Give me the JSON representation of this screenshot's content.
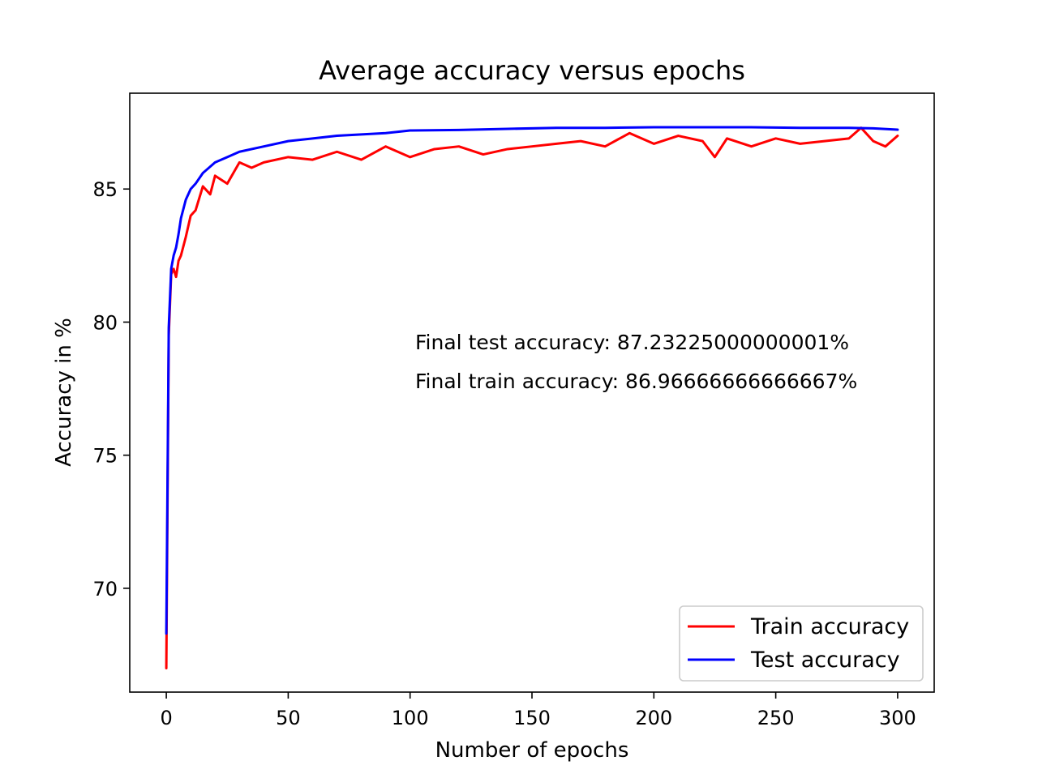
{
  "chart_data": {
    "type": "line",
    "title": "Average accuracy versus epochs",
    "xlabel": "Number of epochs",
    "ylabel": "Accuracy in %",
    "xlim": [
      -15,
      315
    ],
    "ylim": [
      66.1,
      88.6
    ],
    "xticks": [
      0,
      50,
      100,
      150,
      200,
      250,
      300
    ],
    "yticks": [
      70,
      75,
      80,
      85
    ],
    "grid": false,
    "legend_position": "lower-right",
    "series": [
      {
        "name": "Train accuracy",
        "color": "#ff0000",
        "x": [
          0,
          1,
          2,
          3,
          4,
          5,
          6,
          8,
          10,
          12,
          15,
          18,
          20,
          25,
          30,
          35,
          40,
          50,
          60,
          70,
          80,
          90,
          100,
          110,
          120,
          130,
          140,
          150,
          160,
          170,
          180,
          190,
          200,
          210,
          220,
          225,
          230,
          240,
          250,
          260,
          270,
          280,
          285,
          290,
          295,
          300
        ],
        "values": [
          67.0,
          79.5,
          81.8,
          82.0,
          81.7,
          82.3,
          82.5,
          83.2,
          84.0,
          84.2,
          85.1,
          84.8,
          85.5,
          85.2,
          86.0,
          85.8,
          86.0,
          86.2,
          86.1,
          86.4,
          86.1,
          86.6,
          86.2,
          86.5,
          86.6,
          86.3,
          86.5,
          86.6,
          86.7,
          86.8,
          86.6,
          87.1,
          86.7,
          87.0,
          86.8,
          86.2,
          86.9,
          86.6,
          86.9,
          86.7,
          86.8,
          86.9,
          87.3,
          86.8,
          86.6,
          87.0
        ]
      },
      {
        "name": "Test accuracy",
        "color": "#0000ff",
        "x": [
          0,
          1,
          2,
          3,
          4,
          5,
          6,
          8,
          10,
          12,
          15,
          20,
          25,
          30,
          40,
          50,
          60,
          70,
          80,
          90,
          100,
          120,
          140,
          160,
          180,
          200,
          220,
          240,
          260,
          280,
          290,
          300
        ],
        "values": [
          68.3,
          79.8,
          82.0,
          82.5,
          82.8,
          83.3,
          83.9,
          84.6,
          85.0,
          85.2,
          85.6,
          86.0,
          86.2,
          86.4,
          86.6,
          86.8,
          86.9,
          87.0,
          87.05,
          87.1,
          87.2,
          87.22,
          87.26,
          87.3,
          87.3,
          87.32,
          87.32,
          87.32,
          87.3,
          87.3,
          87.28,
          87.23
        ]
      }
    ],
    "annotations": [
      {
        "text": "Final test accuracy: 87.23225000000001%"
      },
      {
        "text": "Final train accuracy: 86.96666666666667%"
      }
    ]
  }
}
